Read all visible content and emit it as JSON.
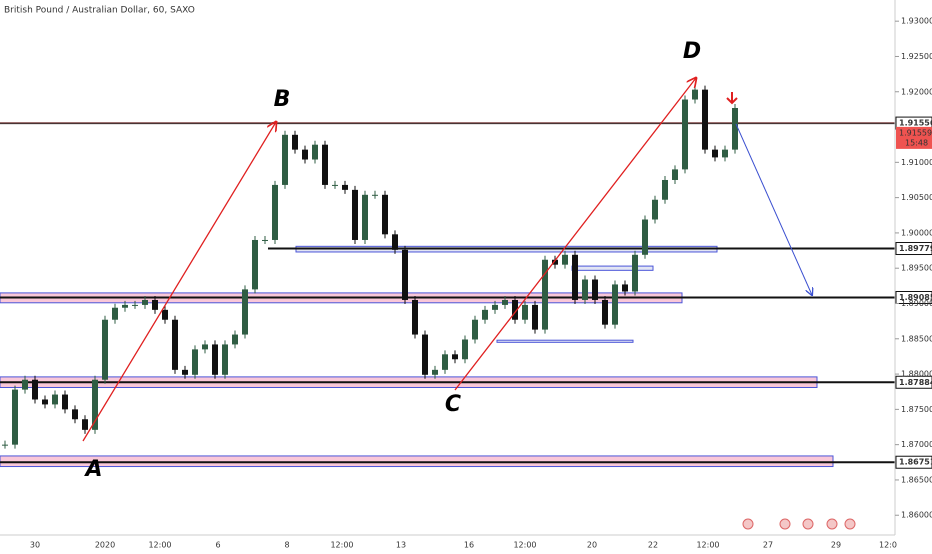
{
  "chart_data": {
    "type": "candlestick",
    "title": "British Pound / Australian Dollar, 60, SAXO",
    "series": [
      {
        "name": "GBPAUD",
        "up_color": "#2f5d43",
        "down_color": "#111111",
        "values": [
          1.87,
          1.8778,
          1.8792,
          1.8764,
          1.8757,
          1.8771,
          1.875,
          1.8736,
          1.8721,
          1.8792,
          1.8877,
          1.8894,
          1.8898,
          1.8898,
          1.8905,
          1.8891,
          1.8877,
          1.8806,
          1.8799,
          1.8835,
          1.8842,
          1.8799,
          1.8842,
          1.8856,
          1.892,
          1.899,
          1.899,
          1.9068,
          1.9139,
          1.9118,
          1.9104,
          1.9125,
          1.9068,
          1.9068,
          1.9061,
          1.899,
          1.9054,
          1.9054,
          1.8998,
          1.8976,
          1.8905,
          1.8856,
          1.8799,
          1.8806,
          1.8828,
          1.8821,
          1.8849,
          1.8877,
          1.8891,
          1.8898,
          1.8905,
          1.8877,
          1.8898,
          1.8863,
          1.8962,
          1.8955,
          1.8969,
          1.8905,
          1.8934,
          1.8905,
          1.887,
          1.8927,
          1.8917,
          1.8969,
          1.9019,
          1.9047,
          1.9075,
          1.909,
          1.9189,
          1.9203,
          1.9118,
          1.9107,
          1.9118,
          1.9177
        ]
      }
    ],
    "ylim": [
      1.8572,
      1.933
    ],
    "yticks": [
      {
        "value": 1.86,
        "label": "1.86000"
      },
      {
        "value": 1.865,
        "label": "1.86500"
      },
      {
        "value": 1.87,
        "label": "1.87000"
      },
      {
        "value": 1.875,
        "label": "1.87500"
      },
      {
        "value": 1.88,
        "label": "1.88000"
      },
      {
        "value": 1.885,
        "label": "1.88500"
      },
      {
        "value": 1.89,
        "label": "1.89000"
      },
      {
        "value": 1.895,
        "label": "1.89500"
      },
      {
        "value": 1.9,
        "label": "1.90000"
      },
      {
        "value": 1.905,
        "label": "1.90500"
      },
      {
        "value": 1.91,
        "label": "1.91000"
      },
      {
        "value": 1.92,
        "label": "1.92000"
      },
      {
        "value": 1.925,
        "label": "1.92500"
      },
      {
        "value": 1.93,
        "label": "1.93000"
      }
    ],
    "time_labels": [
      "30",
      "2020",
      "12:00",
      "6",
      "8",
      "12:00",
      "13",
      "16",
      "12:00",
      "20",
      "22",
      "12:00",
      "27",
      "29",
      "12:0"
    ],
    "levels": [
      1.91556,
      1.89779,
      1.89085,
      1.87884,
      1.86751
    ],
    "zones": [
      {
        "low": 1.8901,
        "high": 1.8915
      },
      {
        "low": 1.8781,
        "high": 1.8796
      },
      {
        "low": 1.8669,
        "high": 1.8684
      },
      {
        "low": 1.8973,
        "high": 1.8981
      },
      {
        "low": 1.8947,
        "high": 1.8953
      },
      {
        "low": 1.8845,
        "high": 1.8848
      }
    ],
    "current_price": 1.91559,
    "countdown": "15:48",
    "annotations": [
      "A",
      "B",
      "C",
      "D"
    ]
  }
}
